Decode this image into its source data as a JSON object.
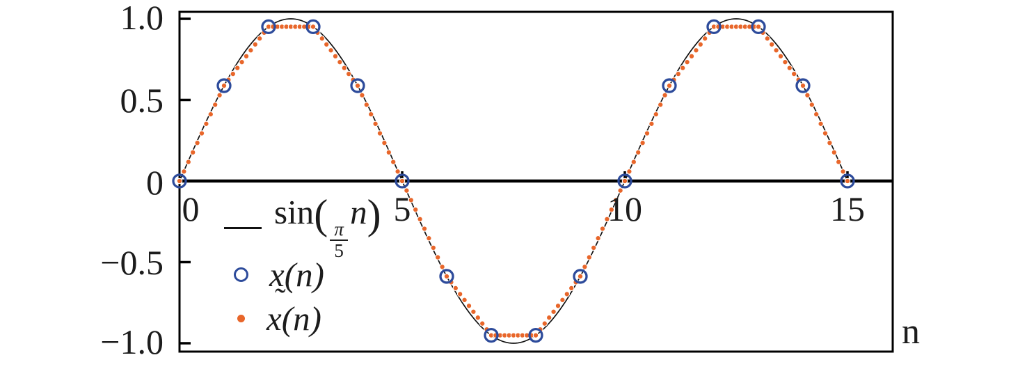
{
  "figure": {
    "background": "#ffffff",
    "text_color": "#1c1c1c"
  },
  "chart_data": {
    "type": "line",
    "title": "",
    "xlabel": "n",
    "ylabel": "",
    "xlim": [
      0,
      16
    ],
    "ylim": [
      -1.05,
      1.05
    ],
    "grid": false,
    "legend_position": "inside lower-left",
    "x_ticks": [
      {
        "value": 0,
        "label": "0"
      },
      {
        "value": 5,
        "label": "5"
      },
      {
        "value": 10,
        "label": "10"
      },
      {
        "value": 15,
        "label": "15"
      }
    ],
    "y_ticks": [
      {
        "value": 1.0,
        "label": "1.0"
      },
      {
        "value": 0.5,
        "label": "0.5"
      },
      {
        "value": 0,
        "label": "0"
      },
      {
        "value": -0.5,
        "label": "−0.5"
      },
      {
        "value": -1.0,
        "label": "−1.0"
      }
    ],
    "series": [
      {
        "name": "sin(π/5 n)",
        "type": "line",
        "color": "#111111",
        "formula": "sin((π/5)·n)",
        "omega": 0.6283185307179586,
        "amplitude": 1,
        "x_range": [
          0,
          15
        ],
        "x_step": 0.05,
        "legend_label_parts": {
          "prefix": "sin",
          "open_paren": "(",
          "frac_numerator": "π",
          "frac_denominator": "5",
          "variable": "n",
          "close_paren": ")"
        }
      },
      {
        "name": "x(n)",
        "type": "scatter",
        "marker": "open-circle",
        "color": "#2d4b9b",
        "x": [
          0,
          1,
          2,
          3,
          4,
          5,
          6,
          7,
          8,
          9,
          10,
          11,
          12,
          13,
          14,
          15
        ],
        "y": [
          0,
          0.5878,
          0.9511,
          0.9511,
          0.5878,
          0,
          -0.5878,
          -0.9511,
          -0.9511,
          -0.5878,
          0,
          0.5878,
          0.9511,
          0.9511,
          0.5878,
          0
        ],
        "legend_label_parts": {
          "variable": "x",
          "rest": "(n)"
        }
      },
      {
        "name": "x̃(n)",
        "type": "scatter",
        "marker": "filled-dot",
        "color": "#e8662a",
        "method": "interpolation of the samples x(n), plotted densely",
        "x_range": [
          0,
          15
        ],
        "x_step": 0.1,
        "legend_label_parts": {
          "variable": "x",
          "accent": "˜",
          "rest": "(n)"
        }
      }
    ]
  }
}
